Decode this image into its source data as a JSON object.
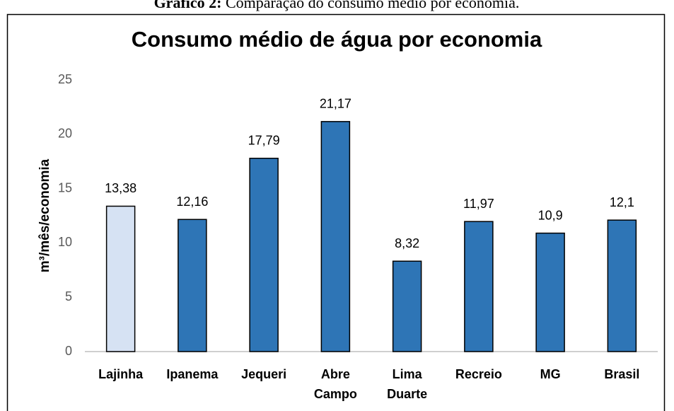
{
  "caption": {
    "label": "Gráfico 2:",
    "text": "Comparação do consumo médio por economia."
  },
  "chart_data": {
    "type": "bar",
    "title": "Consumo médio de água por economia",
    "y_label": "m³/mês/economia",
    "categories": [
      "Lajinha",
      "Ipanema",
      "Jequeri",
      "Abre Campo",
      "Lima Duarte",
      "Recreio",
      "MG",
      "Brasil"
    ],
    "values": [
      13.38,
      12.16,
      17.79,
      21.17,
      8.32,
      11.97,
      10.9,
      12.1
    ],
    "value_labels": [
      "13,38",
      "12,16",
      "17,79",
      "21,17",
      "8,32",
      "11,97",
      "10,9",
      "12,1"
    ],
    "colors": [
      "#d6e2f3",
      "#2e75b6",
      "#2e75b6",
      "#2e75b6",
      "#2e75b6",
      "#2e75b6",
      "#2e75b6",
      "#2e75b6"
    ],
    "ylim": [
      0,
      25
    ],
    "yticks": [
      0,
      5,
      10,
      15,
      20,
      25
    ],
    "grid": false
  }
}
